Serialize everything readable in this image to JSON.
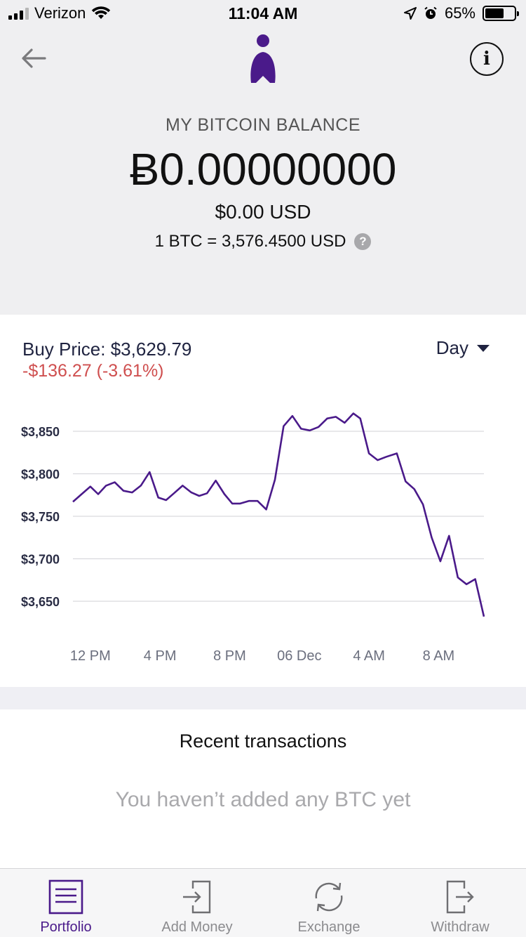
{
  "status_bar": {
    "carrier": "Verizon",
    "time": "11:04 AM",
    "battery": "65%",
    "battery_level": 0.65,
    "icons": [
      "signal-icon",
      "wifi-icon",
      "location-icon",
      "alarm-icon",
      "battery-icon"
    ]
  },
  "header": {
    "balance_label": "MY BITCOIN BALANCE",
    "balance_btc": "Ƀ0.00000000",
    "balance_usd": "$0.00 USD",
    "rate": "1 BTC = 3,576.4500 USD",
    "help_glyph": "?",
    "info_glyph": "i",
    "accent": "#4a1a8a"
  },
  "price": {
    "buy_price": "Buy Price: $3,629.79",
    "change": "-$136.27 (-3.61%)",
    "range": "Day"
  },
  "chart_data": {
    "type": "line",
    "y_tick_labels": [
      "$3,850",
      "$3,800",
      "$3,750",
      "$3,700",
      "$3,650"
    ],
    "y_ticks": [
      3850,
      3800,
      3750,
      3700,
      3650
    ],
    "x_tick_labels": [
      "12 PM",
      "4 PM",
      "8 PM",
      "06 Dec",
      "4 AM",
      "8 AM"
    ],
    "x_tick_hours": [
      1,
      5,
      9,
      13,
      17,
      21
    ],
    "ylim": [
      3630,
      3875
    ],
    "xlim_hours": [
      0,
      24
    ],
    "grid": true,
    "line_color": "#4a1a8a",
    "points": [
      [
        0,
        3767
      ],
      [
        0.5,
        3776
      ],
      [
        1,
        3785
      ],
      [
        1.45,
        3776
      ],
      [
        1.9,
        3786
      ],
      [
        2.4,
        3790
      ],
      [
        2.9,
        3780
      ],
      [
        3.4,
        3778
      ],
      [
        3.9,
        3786
      ],
      [
        4.4,
        3802
      ],
      [
        4.9,
        3772
      ],
      [
        5.35,
        3769
      ],
      [
        5.8,
        3777
      ],
      [
        6.3,
        3786
      ],
      [
        6.8,
        3778
      ],
      [
        7.25,
        3774
      ],
      [
        7.7,
        3777
      ],
      [
        8.2,
        3792
      ],
      [
        8.7,
        3776
      ],
      [
        9.15,
        3765
      ],
      [
        9.6,
        3765
      ],
      [
        10.1,
        3768
      ],
      [
        10.6,
        3768
      ],
      [
        11.1,
        3758
      ],
      [
        11.6,
        3793
      ],
      [
        12.1,
        3856
      ],
      [
        12.6,
        3868
      ],
      [
        13.1,
        3853
      ],
      [
        13.6,
        3851
      ],
      [
        14.1,
        3855
      ],
      [
        14.6,
        3865
      ],
      [
        15.1,
        3867
      ],
      [
        15.6,
        3860
      ],
      [
        16.1,
        3871
      ],
      [
        16.5,
        3865
      ],
      [
        17.0,
        3824
      ],
      [
        17.5,
        3816
      ],
      [
        18.0,
        3820
      ],
      [
        18.6,
        3824
      ],
      [
        19.1,
        3791
      ],
      [
        19.6,
        3782
      ],
      [
        20.1,
        3764
      ],
      [
        20.6,
        3725
      ],
      [
        21.1,
        3697
      ],
      [
        21.6,
        3727
      ],
      [
        22.1,
        3678
      ],
      [
        22.6,
        3670
      ],
      [
        23.1,
        3676
      ],
      [
        23.6,
        3632
      ]
    ]
  },
  "transactions": {
    "title": "Recent transactions",
    "empty_text": "You haven’t added any BTC yet"
  },
  "tab_bar": {
    "tabs": [
      {
        "label": "Portfolio",
        "icon": "portfolio-icon",
        "active": true
      },
      {
        "label": "Add Money",
        "icon": "add-money-icon",
        "active": false
      },
      {
        "label": "Exchange",
        "icon": "exchange-icon",
        "active": false
      },
      {
        "label": "Withdraw",
        "icon": "withdraw-icon",
        "active": false
      }
    ]
  }
}
